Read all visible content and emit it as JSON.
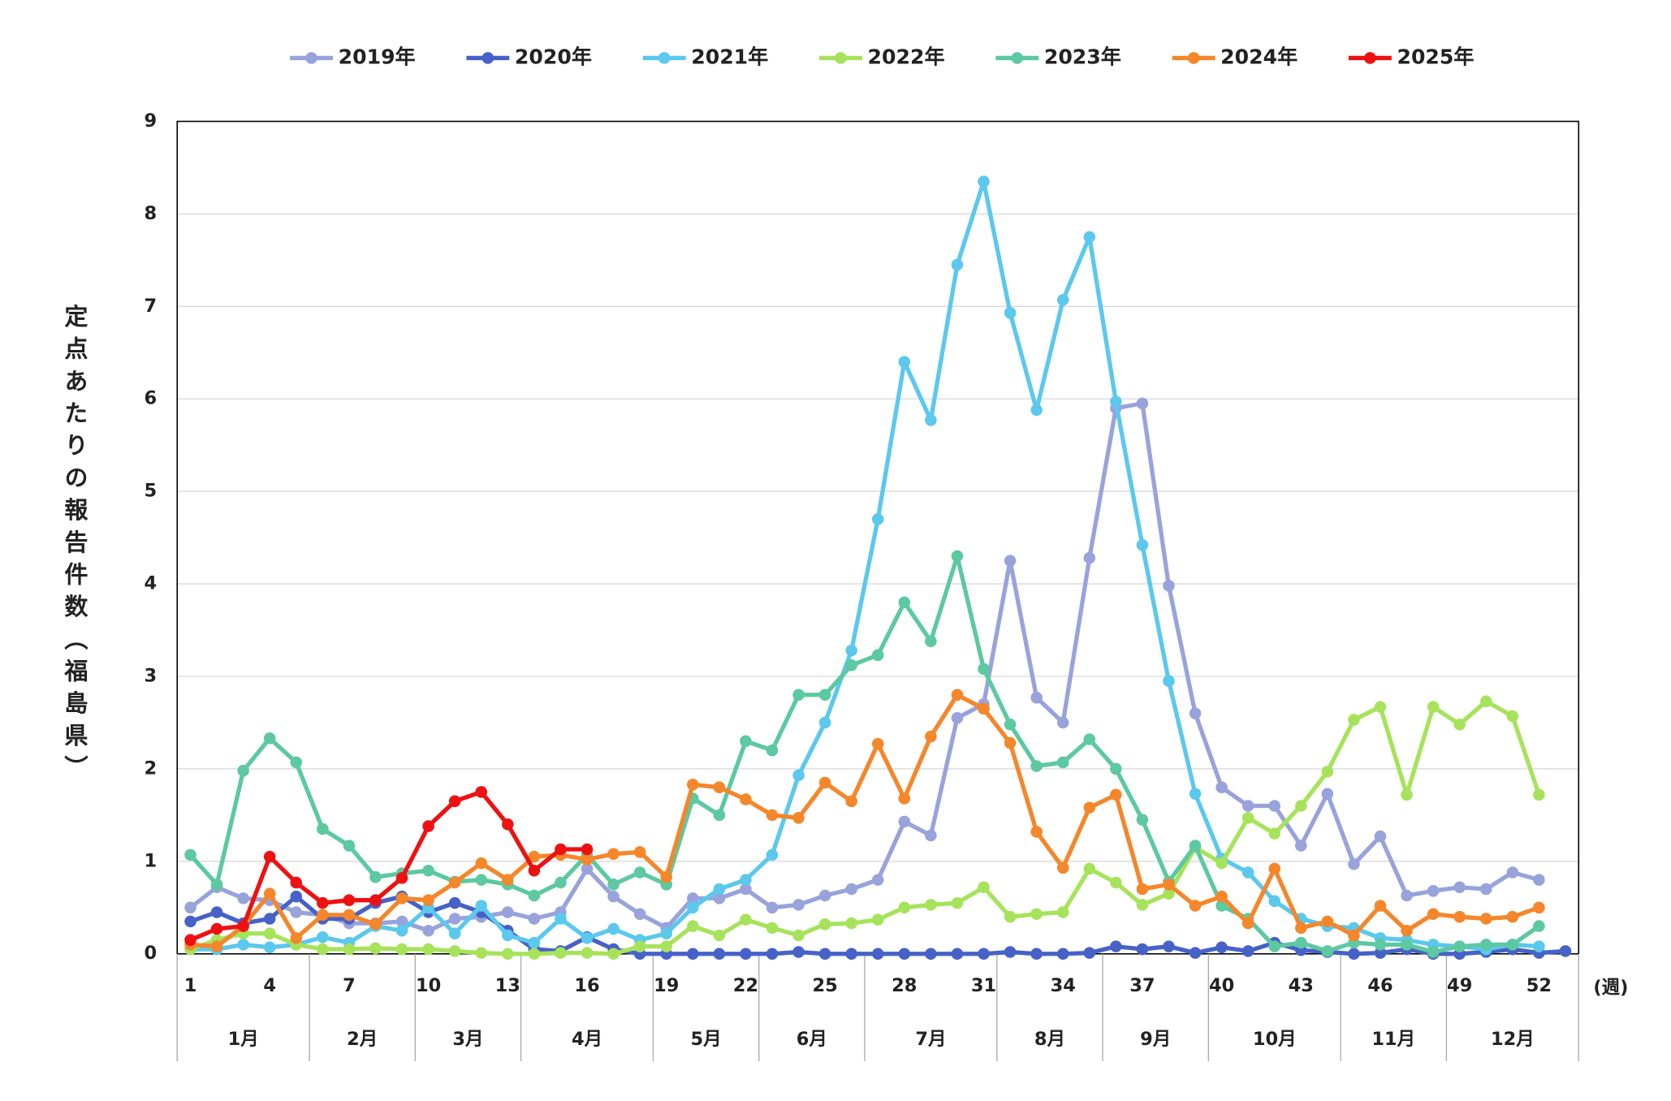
{
  "chart_data": {
    "type": "line",
    "y_label": "定点あたりの報告件数（福島県）",
    "x_label": "(週)",
    "x": [
      1,
      2,
      3,
      4,
      5,
      6,
      7,
      8,
      9,
      10,
      11,
      12,
      13,
      14,
      15,
      16,
      17,
      18,
      19,
      20,
      21,
      22,
      23,
      24,
      25,
      26,
      27,
      28,
      29,
      30,
      31,
      32,
      33,
      34,
      35,
      36,
      37,
      38,
      39,
      40,
      41,
      42,
      43,
      44,
      45,
      46,
      47,
      48,
      49,
      50,
      51,
      52,
      53
    ],
    "xlim": [
      0.5,
      53.5
    ],
    "xticks": [
      1,
      4,
      7,
      10,
      13,
      16,
      19,
      22,
      25,
      28,
      31,
      34,
      37,
      40,
      43,
      46,
      49,
      52
    ],
    "months": [
      {
        "name": "1月",
        "weeks": 5
      },
      {
        "name": "2月",
        "weeks": 4
      },
      {
        "name": "3月",
        "weeks": 4
      },
      {
        "name": "4月",
        "weeks": 5
      },
      {
        "name": "5月",
        "weeks": 4
      },
      {
        "name": "6月",
        "weeks": 4
      },
      {
        "name": "7月",
        "weeks": 5
      },
      {
        "name": "8月",
        "weeks": 4
      },
      {
        "name": "9月",
        "weeks": 4
      },
      {
        "name": "10月",
        "weeks": 5
      },
      {
        "name": "11月",
        "weeks": 4
      },
      {
        "name": "12月",
        "weeks": 5
      }
    ],
    "ylim": [
      0,
      9
    ],
    "yticks": [
      0,
      1,
      2,
      3,
      4,
      5,
      6,
      7,
      8,
      9
    ],
    "grid": true,
    "legend": "top",
    "series": [
      {
        "name": "2019年",
        "color": "#98a3dc",
        "values": [
          0.5,
          0.72,
          0.6,
          0.58,
          0.45,
          0.42,
          0.33,
          0.33,
          0.35,
          0.25,
          0.38,
          0.4,
          0.45,
          0.38,
          0.45,
          0.92,
          0.62,
          0.43,
          0.28,
          0.6,
          0.6,
          0.7,
          0.5,
          0.53,
          0.63,
          0.7,
          0.8,
          1.43,
          1.28,
          2.55,
          2.7,
          4.25,
          2.77,
          2.5,
          4.28,
          5.9,
          5.95,
          3.98,
          2.6,
          1.8,
          1.6,
          1.6,
          1.17,
          1.73,
          0.97,
          1.27,
          0.63,
          0.68,
          0.72,
          0.7,
          0.88,
          0.8,
          null
        ]
      },
      {
        "name": "2020年",
        "color": "#4662c8",
        "values": [
          0.35,
          0.45,
          0.33,
          0.38,
          0.62,
          0.38,
          0.38,
          0.55,
          0.62,
          0.45,
          0.55,
          0.45,
          0.25,
          0.05,
          0.03,
          0.18,
          0.05,
          0,
          0,
          0,
          0,
          0,
          0,
          0.02,
          0,
          0,
          0,
          0,
          0,
          0,
          0,
          0.02,
          0,
          0,
          0.01,
          0.08,
          0.05,
          0.08,
          0.01,
          0.07,
          0.03,
          0.12,
          0.04,
          0.02,
          0,
          0.01,
          0.05,
          0,
          0,
          0.02,
          0.05,
          0.01,
          0.03
        ]
      },
      {
        "name": "2021年",
        "color": "#5bc8ee",
        "values": [
          0.05,
          0.05,
          0.1,
          0.07,
          0.1,
          0.18,
          0.12,
          0.3,
          0.25,
          0.5,
          0.22,
          0.52,
          0.2,
          0.12,
          0.38,
          0.17,
          0.27,
          0.15,
          0.22,
          0.5,
          0.7,
          0.8,
          1.07,
          1.93,
          2.5,
          3.28,
          4.7,
          6.4,
          5.77,
          7.45,
          8.35,
          6.93,
          5.88,
          7.07,
          7.75,
          5.97,
          4.42,
          2.95,
          1.73,
          1.03,
          0.88,
          0.57,
          0.38,
          0.3,
          0.28,
          0.17,
          0.15,
          0.1,
          0.08,
          0.05,
          0.1,
          0.08,
          null
        ]
      },
      {
        "name": "2022年",
        "color": "#a6e35a",
        "values": [
          0.05,
          0.15,
          0.22,
          0.22,
          0.1,
          0.05,
          0.05,
          0.06,
          0.05,
          0.05,
          0.03,
          0.01,
          0,
          0,
          0.01,
          0.01,
          0,
          0.08,
          0.08,
          0.3,
          0.2,
          0.37,
          0.28,
          0.2,
          0.32,
          0.33,
          0.37,
          0.5,
          0.53,
          0.55,
          0.72,
          0.4,
          0.43,
          0.45,
          0.92,
          0.77,
          0.53,
          0.65,
          1.15,
          0.98,
          1.47,
          1.3,
          1.6,
          1.97,
          2.53,
          2.67,
          1.72,
          2.67,
          2.48,
          2.73,
          2.57,
          1.72,
          null
        ]
      },
      {
        "name": "2023年",
        "color": "#5cc9a0",
        "values": [
          1.07,
          0.75,
          1.98,
          2.33,
          2.07,
          1.35,
          1.17,
          0.83,
          0.87,
          0.9,
          0.78,
          0.8,
          0.75,
          0.63,
          0.77,
          1.07,
          0.75,
          0.88,
          0.75,
          1.68,
          1.5,
          2.3,
          2.2,
          2.8,
          2.8,
          3.12,
          3.23,
          3.8,
          3.38,
          4.3,
          3.08,
          2.48,
          2.03,
          2.07,
          2.32,
          2.0,
          1.45,
          0.78,
          1.17,
          0.52,
          0.38,
          0.08,
          0.12,
          0.03,
          0.12,
          0.1,
          0.1,
          0.02,
          0.08,
          0.1,
          0.1,
          0.3,
          null
        ]
      },
      {
        "name": "2024年",
        "color": "#f5862a",
        "values": [
          0.1,
          0.08,
          0.3,
          0.65,
          0.17,
          0.42,
          0.42,
          0.32,
          0.6,
          0.58,
          0.77,
          0.98,
          0.8,
          1.05,
          1.07,
          1.02,
          1.08,
          1.1,
          0.83,
          1.83,
          1.8,
          1.67,
          1.5,
          1.47,
          1.85,
          1.65,
          2.27,
          1.68,
          2.35,
          2.8,
          2.65,
          2.28,
          1.32,
          0.93,
          1.58,
          1.72,
          0.7,
          0.75,
          0.52,
          0.62,
          0.33,
          0.92,
          0.28,
          0.35,
          0.2,
          0.52,
          0.25,
          0.43,
          0.4,
          0.38,
          0.4,
          0.5,
          null
        ]
      },
      {
        "name": "2025年",
        "color": "#ee1111",
        "values": [
          0.15,
          0.27,
          0.3,
          1.05,
          0.77,
          0.55,
          0.58,
          0.58,
          0.82,
          1.38,
          1.65,
          1.75,
          1.4,
          0.9,
          1.13,
          1.13,
          null,
          null,
          null,
          null,
          null,
          null,
          null,
          null,
          null,
          null,
          null,
          null,
          null,
          null,
          null,
          null,
          null,
          null,
          null,
          null,
          null,
          null,
          null,
          null,
          null,
          null,
          null,
          null,
          null,
          null,
          null,
          null,
          null,
          null,
          null,
          null,
          null
        ]
      }
    ]
  }
}
